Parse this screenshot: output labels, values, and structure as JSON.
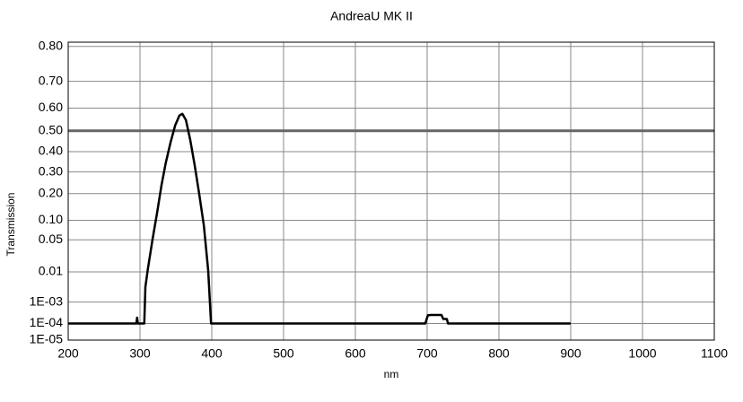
{
  "chart_data": {
    "type": "line",
    "title": "AndreaU  MK II",
    "xlabel": "nm",
    "ylabel": "Transmission",
    "yscale": "double-log",
    "grid": true,
    "xlim": [
      200,
      1100
    ],
    "xticks": [
      200,
      300,
      400,
      500,
      600,
      700,
      800,
      900,
      1000,
      1100
    ],
    "ylim": [
      1e-05,
      0.81
    ],
    "yticks": [
      {
        "value": 1e-05,
        "label": "1E-05"
      },
      {
        "value": 0.0001,
        "label": "1E-04"
      },
      {
        "value": 0.001,
        "label": "1E-03"
      },
      0.01,
      0.05,
      {
        "value": 0.1,
        "label": "0.10"
      },
      {
        "value": 0.2,
        "label": "0.20"
      },
      {
        "value": 0.3,
        "label": "0.30"
      },
      {
        "value": 0.4,
        "label": "0.40"
      },
      {
        "value": 0.5,
        "label": "0.50"
      },
      {
        "value": 0.6,
        "label": "0.60"
      },
      {
        "value": 0.7,
        "label": "0.70"
      },
      {
        "value": 0.8,
        "label": "0.80"
      }
    ],
    "hline": 0.5,
    "x": [
      200,
      295,
      296,
      297,
      306,
      307.5,
      311,
      317.5,
      324,
      330,
      336,
      342.5,
      349,
      355,
      359,
      364,
      370,
      376,
      382.5,
      389,
      395,
      399,
      697.5,
      701,
      705,
      720,
      722.5,
      727.5,
      729,
      900
    ],
    "series": [
      {
        "name": "Transmission",
        "color": "#000000",
        "values": [
          0.0001,
          0.0001,
          0.0002,
          0.0001,
          0.0001,
          0.0035,
          0.012,
          0.051,
          0.127,
          0.238,
          0.346,
          0.444,
          0.525,
          0.569,
          0.576,
          0.549,
          0.457,
          0.337,
          0.198,
          0.084,
          0.011,
          0.0001,
          0.0001,
          0.00026,
          0.00027,
          0.00027,
          0.00017,
          0.00017,
          0.0001,
          0.0001
        ]
      }
    ]
  }
}
